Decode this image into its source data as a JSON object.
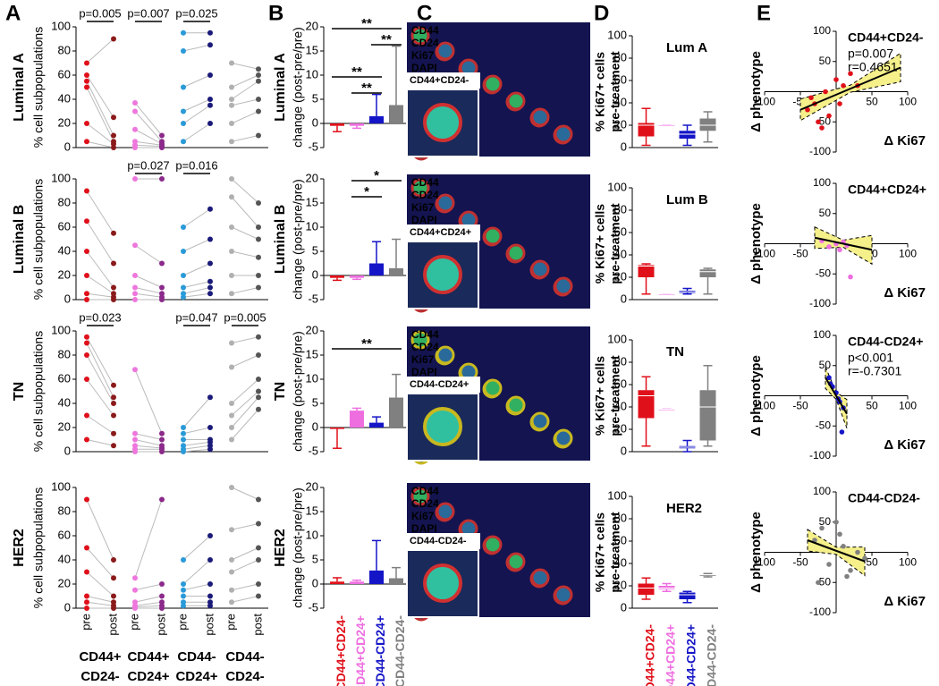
{
  "panel_labels": [
    "A",
    "B",
    "C",
    "D",
    "E"
  ],
  "groups": [
    {
      "line1": "CD44+",
      "line2": "CD24-",
      "color": "#e0101a",
      "pre_color": "#e0101a",
      "post_color": "#8b1a1a"
    },
    {
      "line1": "CD44+",
      "line2": "CD24+",
      "color": "#ee6ee0",
      "pre_color": "#ee77dd",
      "post_color": "#8b2a8b"
    },
    {
      "line1": "CD44-",
      "line2": "CD24+",
      "color": "#1515c8",
      "pre_color": "#2a9ad8",
      "post_color": "#1a1a7a"
    },
    {
      "line1": "CD44-",
      "line2": "CD24-",
      "color": "#808080",
      "pre_color": "#b0b0b0",
      "post_color": "#555555"
    }
  ],
  "panel_a": {
    "y_label": "% cell subpopulations",
    "x_labels": [
      "pre",
      "post"
    ],
    "ylim": [
      0,
      100
    ],
    "yticks": [
      0,
      20,
      40,
      60,
      80,
      100
    ],
    "rows": [
      {
        "name": "Luminal A",
        "pvalues": [
          "p=0.005",
          "p=0.007",
          "p=0.025",
          null
        ],
        "groups": [
          {
            "pre": [
              70,
              60,
              55,
              50,
              20,
              5
            ],
            "post": [
              90,
              25,
              10,
              5,
              3,
              0
            ]
          },
          {
            "pre": [
              37,
              30,
              15,
              5,
              2,
              0
            ],
            "post": [
              10,
              5,
              3,
              2,
              1,
              0
            ]
          },
          {
            "pre": [
              95,
              80,
              50,
              30,
              20,
              5
            ],
            "post": [
              95,
              85,
              60,
              40,
              35,
              20
            ]
          },
          {
            "pre": [
              70,
              50,
              40,
              35,
              20,
              5
            ],
            "post": [
              65,
              60,
              55,
              40,
              30,
              10
            ]
          }
        ]
      },
      {
        "name": "Luminal B",
        "pvalues": [
          null,
          "p=0.027",
          "p=0.016",
          null
        ],
        "groups": [
          {
            "pre": [
              90,
              65,
              40,
              20,
              5,
              0
            ],
            "post": [
              55,
              30,
              10,
              5,
              2,
              0
            ]
          },
          {
            "pre": [
              100,
              45,
              20,
              10,
              5,
              0
            ],
            "post": [
              100,
              30,
              10,
              5,
              2,
              0
            ]
          },
          {
            "pre": [
              60,
              40,
              20,
              10,
              5,
              2
            ],
            "post": [
              75,
              50,
              30,
              15,
              10,
              5
            ]
          },
          {
            "pre": [
              100,
              85,
              60,
              40,
              20,
              5
            ],
            "post": [
              80,
              60,
              50,
              35,
              20,
              10
            ]
          }
        ]
      },
      {
        "name": "TN",
        "pvalues": [
          "p=0.023",
          null,
          "p=0.047",
          "p=0.005"
        ],
        "groups": [
          {
            "pre": [
              95,
              90,
              80,
              60,
              30,
              10
            ],
            "post": [
              55,
              45,
              40,
              30,
              15,
              5
            ]
          },
          {
            "pre": [
              68,
              15,
              10,
              5,
              2,
              0
            ],
            "post": [
              15,
              10,
              5,
              3,
              2,
              0
            ]
          },
          {
            "pre": [
              20,
              15,
              10,
              5,
              2,
              0
            ],
            "post": [
              45,
              20,
              10,
              8,
              5,
              2
            ]
          },
          {
            "pre": [
              90,
              70,
              40,
              30,
              20,
              10
            ],
            "post": [
              95,
              80,
              60,
              50,
              45,
              35
            ]
          }
        ]
      },
      {
        "name": "HER2",
        "pvalues": [
          null,
          null,
          null,
          null
        ],
        "groups": [
          {
            "pre": [
              90,
              50,
              30,
              10,
              5,
              0
            ],
            "post": [
              40,
              25,
              10,
              5,
              2,
              0
            ]
          },
          {
            "pre": [
              25,
              15,
              5,
              2,
              1,
              0
            ],
            "post": [
              90,
              20,
              10,
              5,
              2,
              0
            ]
          },
          {
            "pre": [
              40,
              20,
              15,
              10,
              5,
              2
            ],
            "post": [
              60,
              40,
              20,
              10,
              5,
              2
            ]
          },
          {
            "pre": [
              100,
              65,
              40,
              30,
              15,
              5
            ],
            "post": [
              90,
              70,
              50,
              40,
              20,
              10
            ]
          }
        ]
      }
    ]
  },
  "panel_b": {
    "y_label": "change (post-pre/pre)",
    "ylim": [
      -5,
      20
    ],
    "yticks": [
      -5,
      0,
      5,
      10,
      15,
      20
    ],
    "rows": [
      {
        "name": "Luminal A",
        "values": [
          -0.5,
          -0.5,
          1.5,
          3.8
        ],
        "errors": [
          1.2,
          0.5,
          4.5,
          12.2
        ],
        "significance": [
          "**",
          "**",
          "**",
          "**"
        ]
      },
      {
        "name": "Luminal B",
        "values": [
          -0.5,
          -0.5,
          2.5,
          1.5
        ],
        "errors": [
          0.5,
          0.3,
          4.5,
          6
        ],
        "significance": [
          "*",
          "*"
        ]
      },
      {
        "name": "TN",
        "values": [
          -0.3,
          3.5,
          1,
          6.2
        ],
        "errors": [
          4,
          0.5,
          1.2,
          4.8
        ],
        "significance": [
          "**"
        ]
      },
      {
        "name": "HER2",
        "values": [
          0.5,
          0.5,
          2.8,
          1.2
        ],
        "errors": [
          0.8,
          0.3,
          6.2,
          2.2
        ],
        "significance": []
      }
    ]
  },
  "panel_c": {
    "channels": [
      {
        "name": "CD44",
        "color": "#ff3030"
      },
      {
        "name": "CD24",
        "color": "#ffd040"
      },
      {
        "name": "Ki67",
        "color": "#40ff40"
      },
      {
        "name": "DAPI",
        "color": "#4060ff"
      }
    ],
    "insets": [
      "CD44+CD24-",
      "CD44+CD24+",
      "CD44-CD24+",
      "CD44-CD24-"
    ]
  },
  "panel_d": {
    "y_label": [
      "% Ki67+ cells",
      "pre-treatment"
    ],
    "ylim": [
      0,
      100
    ],
    "yticks": [
      0,
      20,
      40,
      60,
      80,
      100
    ],
    "rows": [
      {
        "name": "Lum A",
        "boxes": [
          [
            2,
            10,
            20,
            22,
            35
          ],
          [
            20,
            20,
            20,
            20,
            20
          ],
          [
            2,
            8,
            12,
            15,
            20
          ],
          [
            5,
            15,
            20,
            26,
            32
          ]
        ]
      },
      {
        "name": "Lum B",
        "boxes": [
          [
            5,
            20,
            30,
            31,
            32
          ],
          [
            5,
            5,
            5,
            5,
            5
          ],
          [
            5,
            6,
            7,
            8,
            10
          ],
          [
            5,
            20,
            25,
            27,
            28
          ]
        ]
      },
      {
        "name": "TN",
        "boxes": [
          [
            5,
            30,
            50,
            55,
            67
          ],
          [
            38,
            38,
            38,
            38,
            38
          ],
          [
            0,
            3,
            4,
            5,
            10
          ],
          [
            5,
            10,
            40,
            55,
            77
          ]
        ]
      },
      {
        "name": "HER2",
        "boxes": [
          [
            8,
            12,
            18,
            22,
            27
          ],
          [
            15,
            17,
            18,
            20,
            22
          ],
          [
            5,
            8,
            12,
            14,
            15
          ],
          [
            28,
            29,
            30,
            30,
            31
          ]
        ]
      }
    ]
  },
  "panel_e": {
    "y_label": "Δ phenotype",
    "x_label": "Δ Ki67",
    "xlim": [
      -100,
      100
    ],
    "ylim": [
      -100,
      100
    ],
    "xticks": [
      -100,
      -50,
      50,
      100
    ],
    "yticks": [
      -100,
      -50,
      50,
      100
    ],
    "rows": [
      {
        "label": "CD44+CD24-",
        "stats": [
          "p=0.007",
          "r=0.4651"
        ],
        "x": [
          -40,
          -30,
          -20,
          -10,
          0,
          10,
          20,
          -35,
          -25,
          5,
          -15,
          30
        ],
        "y": [
          -30,
          -20,
          -60,
          -40,
          20,
          10,
          30,
          -10,
          -50,
          -20,
          0,
          10
        ],
        "fit": {
          "x": [
            -50,
            90
          ],
          "y": [
            -30,
            40
          ]
        }
      },
      {
        "label": "CD44+CD24+",
        "stats": [],
        "x": [
          -20,
          -10,
          0,
          5,
          10,
          15,
          20
        ],
        "y": [
          5,
          -5,
          0,
          -10,
          3,
          -3,
          -55
        ],
        "fit": {
          "x": [
            -30,
            50
          ],
          "y": [
            10,
            -10
          ]
        }
      },
      {
        "label": "CD44-CD24+",
        "stats": [
          "p<0.001",
          "r=-0.7301"
        ],
        "x": [
          -10,
          -5,
          0,
          5,
          10,
          -8,
          3,
          8
        ],
        "y": [
          30,
          15,
          5,
          -10,
          -20,
          20,
          -5,
          -60
        ],
        "fit": {
          "x": [
            -15,
            15
          ],
          "y": [
            30,
            -30
          ]
        }
      },
      {
        "label": "CD44-CD24-",
        "stats": [],
        "x": [
          -30,
          -20,
          -10,
          0,
          10,
          20,
          30,
          40,
          -25,
          5,
          15
        ],
        "y": [
          20,
          40,
          -20,
          50,
          10,
          -30,
          0,
          -10,
          -50,
          30,
          -40
        ],
        "fit": {
          "x": [
            -40,
            40
          ],
          "y": [
            20,
            -15
          ]
        }
      }
    ]
  }
}
